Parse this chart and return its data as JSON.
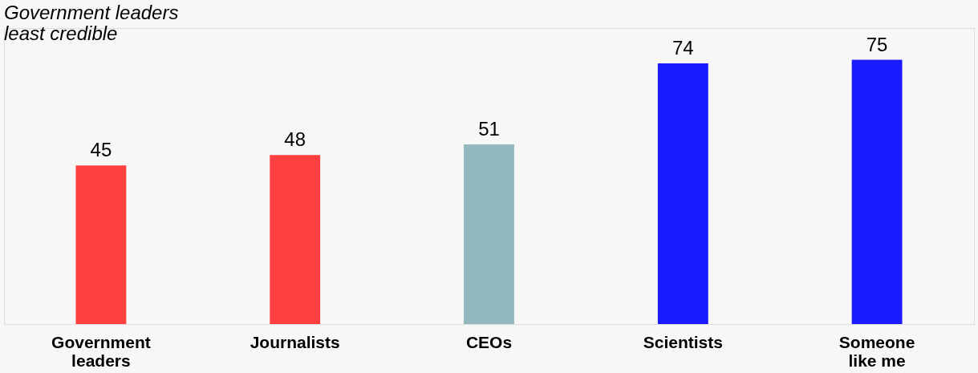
{
  "chart_data": {
    "type": "bar",
    "title": [
      "Government leaders",
      "least credible"
    ],
    "categories": [
      "Government leaders",
      "Journalists",
      "CEOs",
      "Scientists",
      "Someone like me"
    ],
    "values": [
      45,
      48,
      51,
      74,
      75
    ],
    "colors": [
      "#ff4040",
      "#ff4040",
      "#93b8bf",
      "#1a1aff",
      "#1a1aff"
    ],
    "ylim": [
      0,
      84
    ],
    "tick_labels": "x",
    "data_labels": true
  }
}
